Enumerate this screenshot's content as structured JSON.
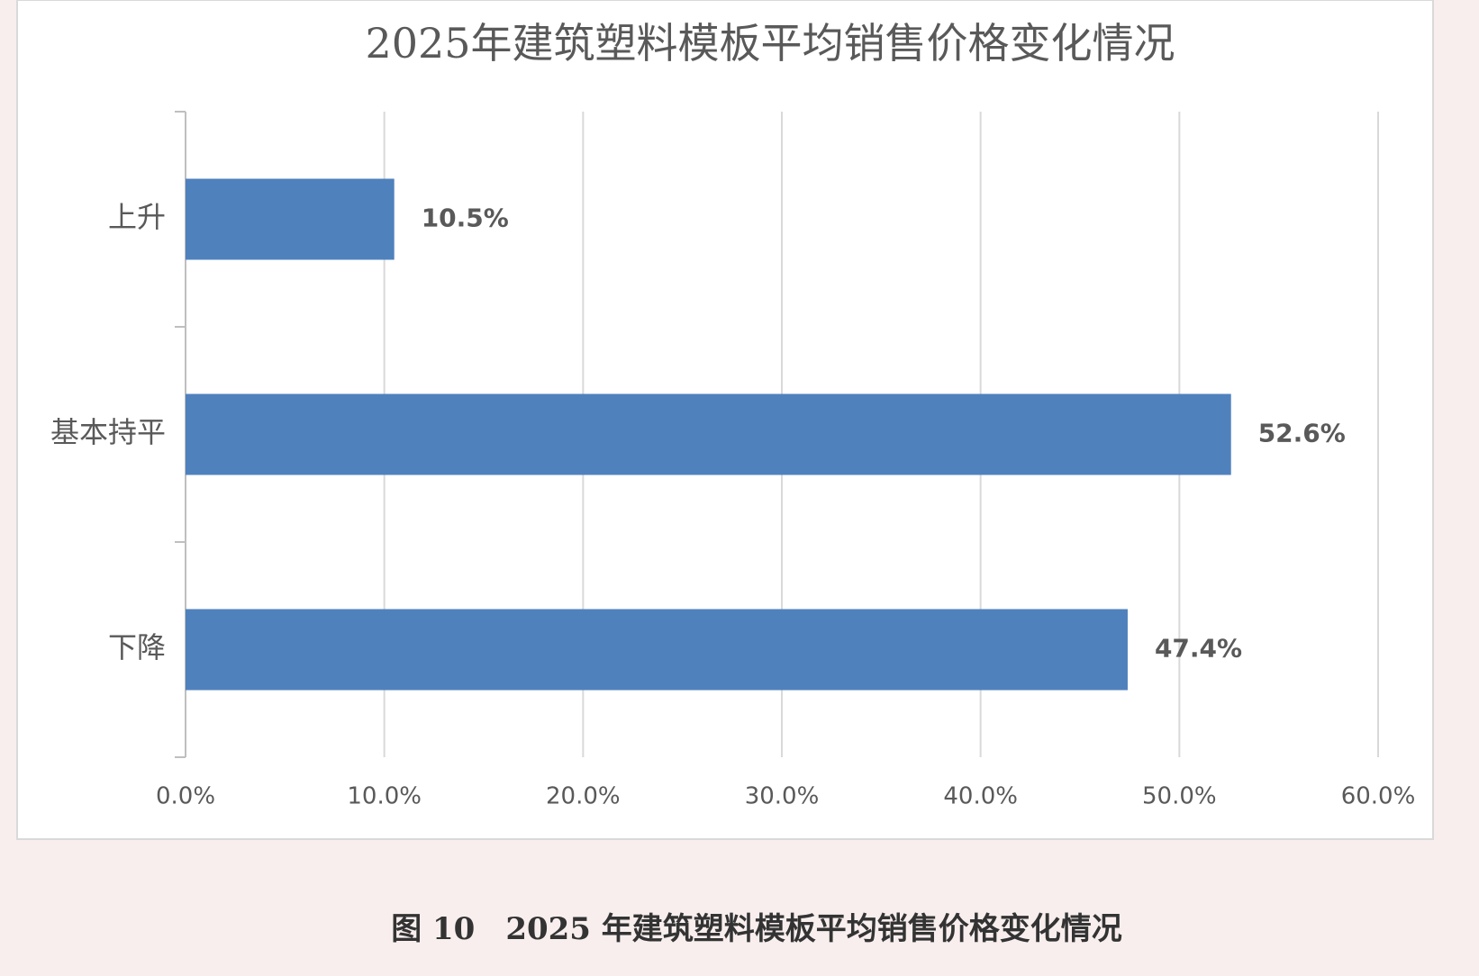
{
  "chart_data": {
    "type": "hbar",
    "title": "2025年建筑塑料模板平均销售价格变化情况",
    "caption": "图 10　2025 年建筑塑料模板平均销售价格变化情况",
    "categories": [
      "上升",
      "基本持平",
      "下降"
    ],
    "values": [
      10.5,
      52.6,
      47.4
    ],
    "value_labels": [
      "10.5%",
      "52.6%",
      "47.4%"
    ],
    "color": "#4f81bd",
    "xlim": [
      0,
      60
    ],
    "xticks": [
      {
        "value": 0,
        "label": "0.0%"
      },
      {
        "value": 10,
        "label": "10.0%"
      },
      {
        "value": 20,
        "label": "20.0%"
      },
      {
        "value": 30,
        "label": "30.0%"
      },
      {
        "value": 40,
        "label": "40.0%"
      },
      {
        "value": 50,
        "label": "50.0%"
      },
      {
        "value": 60,
        "label": "60.0%"
      }
    ],
    "grid": true
  }
}
